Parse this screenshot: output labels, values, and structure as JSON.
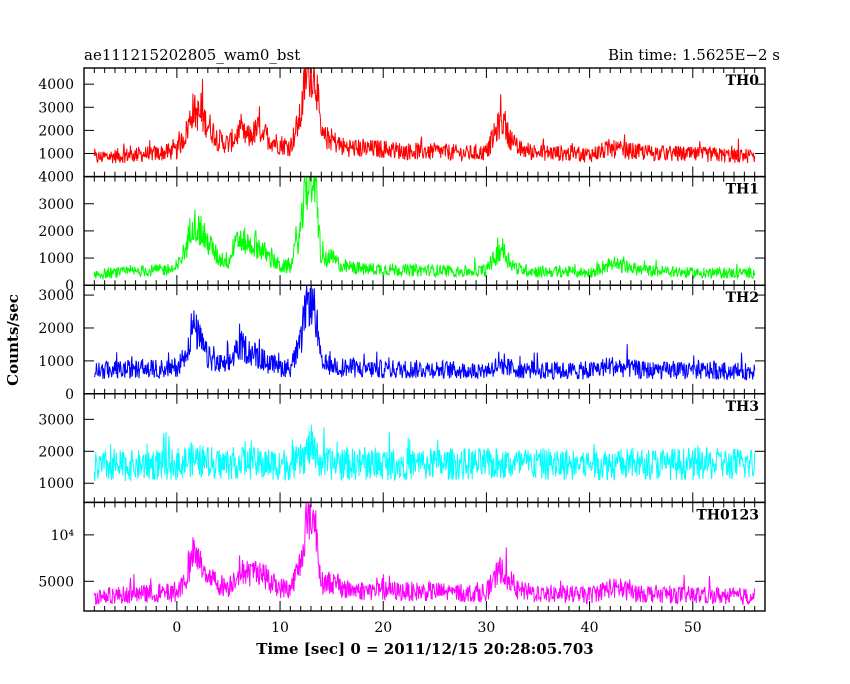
{
  "chart_data": {
    "type": "line",
    "title": "ae111215202805_wam0_bst",
    "subtitle": "Bin time: 1.5625E−2 s",
    "xlabel": "Time [sec] 0 = 2011/12/15 20:28:05.703",
    "ylabel": "Counts/sec",
    "xlim": [
      -9,
      57
    ],
    "x_ticks": [
      0,
      10,
      20,
      30,
      40,
      50
    ],
    "x_tick_labels": [
      "0",
      "10",
      "20",
      "30",
      "40",
      "50"
    ],
    "panels": [
      {
        "name": "TH0",
        "color": "#ff0000",
        "ylim": [
          0,
          4700
        ],
        "y_ticks": [
          1000,
          2000,
          3000,
          4000
        ],
        "y_tick_labels": [
          "1000",
          "2000",
          "3000",
          "4000"
        ],
        "x": [
          -8,
          -6,
          -4,
          -2,
          0,
          1,
          1.5,
          2,
          3,
          4,
          5,
          6,
          7,
          8,
          9,
          10,
          11,
          12,
          12.5,
          13,
          13.5,
          14,
          15,
          16,
          18,
          20,
          22,
          25,
          28,
          30,
          31.5,
          32,
          33,
          35,
          38,
          40,
          42,
          45,
          48,
          50,
          52,
          54,
          56
        ],
        "values": [
          800,
          900,
          950,
          1000,
          1100,
          2000,
          2900,
          2700,
          2300,
          1600,
          1400,
          1900,
          1700,
          2100,
          1600,
          1400,
          1300,
          2600,
          4400,
          4600,
          4200,
          1700,
          1600,
          1300,
          1200,
          1200,
          1100,
          1100,
          1000,
          1050,
          2500,
          1900,
          1200,
          1050,
          1000,
          950,
          1200,
          1050,
          1000,
          950,
          950,
          900,
          900
        ]
      },
      {
        "name": "TH1",
        "color": "#00ff00",
        "ylim": [
          0,
          4000
        ],
        "y_ticks": [
          0,
          1000,
          2000,
          3000,
          4000
        ],
        "y_tick_labels": [
          "0",
          "1000",
          "2000",
          "3000",
          "4000"
        ],
        "x": [
          -8,
          -6,
          -4,
          -2,
          0,
          1,
          1.5,
          2,
          3,
          4,
          5,
          6,
          7,
          8,
          9,
          10,
          11,
          12,
          12.5,
          13,
          13.5,
          14,
          15,
          16,
          18,
          20,
          22,
          25,
          28,
          30,
          31.5,
          32,
          33,
          35,
          38,
          40,
          42,
          45,
          48,
          50,
          52,
          54,
          56
        ],
        "values": [
          400,
          450,
          500,
          550,
          600,
          1500,
          2400,
          2100,
          1600,
          1000,
          900,
          1700,
          1500,
          1400,
          1000,
          700,
          650,
          2000,
          3600,
          3900,
          3400,
          900,
          1000,
          700,
          600,
          600,
          550,
          550,
          500,
          550,
          1400,
          1000,
          600,
          500,
          500,
          450,
          800,
          550,
          500,
          450,
          450,
          450,
          450
        ]
      },
      {
        "name": "TH2",
        "color": "#0000ff",
        "ylim": [
          0,
          3300
        ],
        "y_ticks": [
          0,
          1000,
          2000,
          3000
        ],
        "y_tick_labels": [
          "0",
          "1000",
          "2000",
          "3000"
        ],
        "x": [
          -8,
          -6,
          -4,
          -2,
          0,
          1,
          1.5,
          2,
          3,
          4,
          5,
          6,
          7,
          8,
          9,
          10,
          11,
          12,
          12.5,
          13,
          13.5,
          14,
          15,
          16,
          18,
          20,
          22,
          25,
          28,
          30,
          31.5,
          32,
          33,
          35,
          38,
          40,
          42,
          45,
          48,
          50,
          52,
          54,
          56
        ],
        "values": [
          700,
          720,
          750,
          750,
          800,
          1300,
          2100,
          1800,
          1100,
          900,
          850,
          1500,
          1300,
          1100,
          900,
          800,
          800,
          1500,
          2700,
          2900,
          2300,
          850,
          900,
          800,
          750,
          750,
          750,
          750,
          700,
          720,
          900,
          800,
          750,
          720,
          700,
          700,
          850,
          720,
          700,
          700,
          700,
          680,
          680
        ]
      },
      {
        "name": "TH3",
        "color": "#00ffff",
        "ylim": [
          400,
          3800
        ],
        "y_ticks": [
          1000,
          2000,
          3000
        ],
        "y_tick_labels": [
          "1000",
          "2000",
          "3000"
        ],
        "x": [
          -8,
          -6,
          -4,
          -2,
          0,
          1,
          1.5,
          2,
          3,
          4,
          5,
          6,
          7,
          8,
          9,
          10,
          11,
          12,
          12.5,
          13,
          13.5,
          14,
          15,
          16,
          18,
          20,
          22,
          25,
          28,
          30,
          31.5,
          32,
          33,
          35,
          38,
          40,
          42,
          45,
          48,
          50,
          52,
          54,
          56
        ],
        "values": [
          1500,
          1550,
          1550,
          1600,
          1600,
          1700,
          1750,
          1700,
          1650,
          1600,
          1600,
          1650,
          1650,
          1600,
          1600,
          1600,
          1600,
          1700,
          1900,
          2200,
          1800,
          1650,
          1600,
          1600,
          1600,
          1600,
          1600,
          1600,
          1600,
          1600,
          1600,
          1600,
          1600,
          1600,
          1600,
          1600,
          1600,
          1600,
          1600,
          1600,
          1600,
          1600,
          1600
        ]
      },
      {
        "name": "TH0123",
        "color": "#ff00ff",
        "ylim": [
          1800,
          13500
        ],
        "y_ticks": [
          5000,
          10000
        ],
        "y_tick_labels": [
          "5000",
          "10⁴"
        ],
        "x": [
          -8,
          -6,
          -4,
          -2,
          0,
          1,
          1.5,
          2,
          3,
          4,
          5,
          6,
          7,
          8,
          9,
          10,
          11,
          12,
          12.5,
          13,
          13.5,
          14,
          15,
          16,
          18,
          20,
          22,
          25,
          28,
          30,
          31.5,
          32,
          33,
          35,
          38,
          40,
          42,
          45,
          48,
          50,
          52,
          54,
          56
        ],
        "values": [
          3400,
          3500,
          3600,
          3700,
          3800,
          5500,
          8000,
          7300,
          5800,
          4700,
          4400,
          6100,
          5800,
          6200,
          5000,
          4300,
          4200,
          7000,
          11000,
          12500,
          10500,
          4800,
          4900,
          4200,
          4000,
          4000,
          3900,
          3900,
          3700,
          3800,
          6500,
          5500,
          4000,
          3700,
          3600,
          3500,
          4300,
          3700,
          3600,
          3500,
          3500,
          3400,
          3400
        ]
      }
    ]
  }
}
